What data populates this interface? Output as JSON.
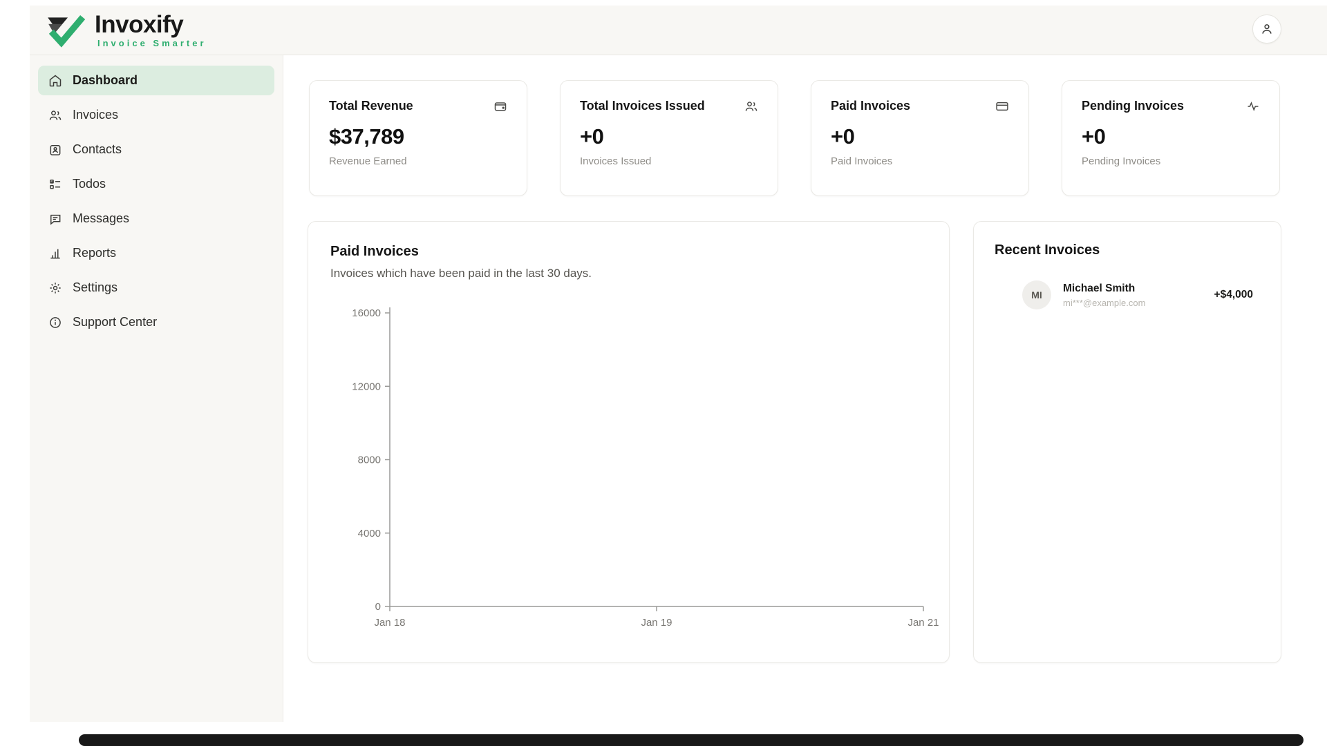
{
  "brand": {
    "name": "Invoxify",
    "tagline": "Invoice Smarter"
  },
  "colors": {
    "accent_green": "#2fae6f",
    "active_item_bg": "#dcede0",
    "sidebar_bg": "#f8f7f4"
  },
  "header": {
    "profile_icon": "user-icon"
  },
  "sidebar": {
    "items": [
      {
        "label": "Dashboard",
        "icon": "home-icon",
        "active": true
      },
      {
        "label": "Invoices",
        "icon": "users-icon",
        "active": false
      },
      {
        "label": "Contacts",
        "icon": "contact-card-icon",
        "active": false
      },
      {
        "label": "Todos",
        "icon": "todo-list-icon",
        "active": false
      },
      {
        "label": "Messages",
        "icon": "message-icon",
        "active": false
      },
      {
        "label": "Reports",
        "icon": "bar-chart-icon",
        "active": false
      },
      {
        "label": "Settings",
        "icon": "gear-icon",
        "active": false
      },
      {
        "label": "Support Center",
        "icon": "info-icon",
        "active": false
      }
    ]
  },
  "stats": [
    {
      "title": "Total Revenue",
      "value": "$37,789",
      "caption": "Revenue Earned",
      "icon": "wallet-icon"
    },
    {
      "title": "Total Invoices Issued",
      "value": "+0",
      "caption": "Invoices Issued",
      "icon": "users-icon"
    },
    {
      "title": "Paid Invoices",
      "value": "+0",
      "caption": "Paid Invoices",
      "icon": "credit-card-icon"
    },
    {
      "title": "Pending Invoices",
      "value": "+0",
      "caption": "Pending Invoices",
      "icon": "activity-icon"
    }
  ],
  "chart_card": {
    "title": "Paid Invoices",
    "subtitle": "Invoices which have been paid in the last 30 days."
  },
  "chart_data": {
    "type": "line",
    "title": "Paid Invoices",
    "x_ticks": [
      "Jan 18",
      "Jan 19",
      "Jan 21"
    ],
    "y_ticks": [
      0,
      4000,
      8000,
      12000,
      16000
    ],
    "ylim": [
      0,
      16000
    ],
    "grid": false,
    "series": [
      {
        "name": "Paid Invoices",
        "points": []
      }
    ]
  },
  "recent": {
    "title": "Recent Invoices",
    "items": [
      {
        "initials": "MI",
        "name": "Michael Smith",
        "email": "mi***@example.com",
        "amount": "+$4,000"
      }
    ]
  }
}
